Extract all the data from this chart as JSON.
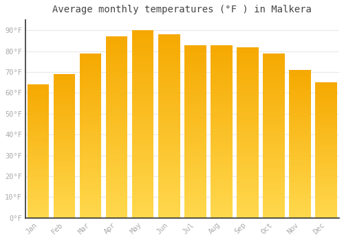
{
  "title": "Average monthly temperatures (°F ) in Malkera",
  "months": [
    "Jan",
    "Feb",
    "Mar",
    "Apr",
    "May",
    "Jun",
    "Jul",
    "Aug",
    "Sep",
    "Oct",
    "Nov",
    "Dec"
  ],
  "temperatures": [
    64,
    69,
    79,
    87,
    90,
    88,
    83,
    83,
    82,
    79,
    71,
    65
  ],
  "bar_color_bottom": "#FFD84D",
  "bar_color_top": "#F5A800",
  "ylim": [
    0,
    95
  ],
  "yticks": [
    0,
    10,
    20,
    30,
    40,
    50,
    60,
    70,
    80,
    90
  ],
  "ytick_labels": [
    "0°F",
    "10°F",
    "20°F",
    "30°F",
    "40°F",
    "50°F",
    "60°F",
    "70°F",
    "80°F",
    "90°F"
  ],
  "background_color": "#FFFFFF",
  "grid_color": "#E8E8E8",
  "title_fontsize": 10,
  "tick_fontsize": 7.5,
  "tick_color": "#AAAAAA",
  "font_family": "monospace",
  "bar_width": 0.82
}
